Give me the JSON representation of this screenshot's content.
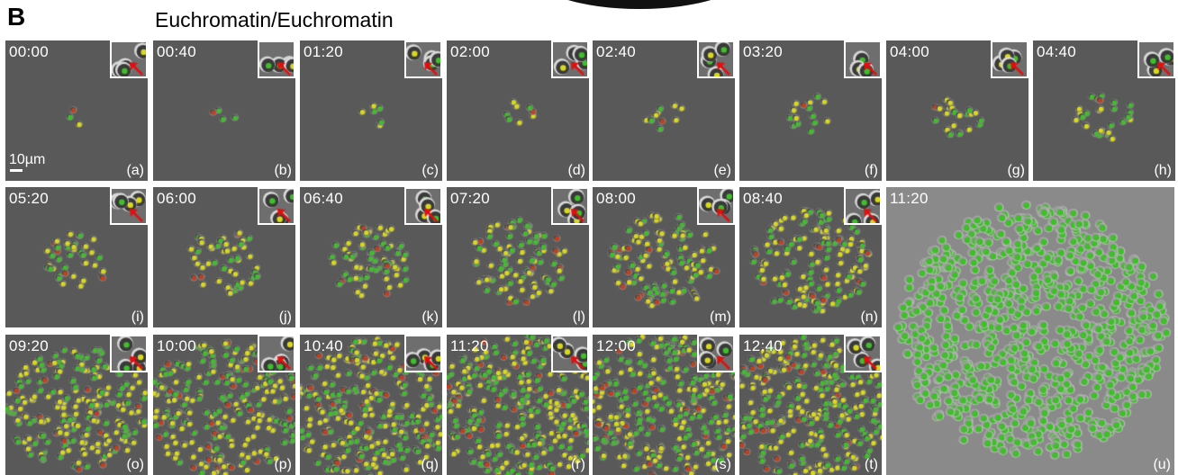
{
  "figure": {
    "panel_letter": "B",
    "title": "Euchromatin/Euchromatin",
    "scale_bar_label": "10µm"
  },
  "panels": [
    {
      "time": "00:00",
      "label": "(a)",
      "cells": 3
    },
    {
      "time": "00:40",
      "label": "(b)",
      "cells": 4
    },
    {
      "time": "01:20",
      "label": "(c)",
      "cells": 6
    },
    {
      "time": "02:00",
      "label": "(d)",
      "cells": 8
    },
    {
      "time": "02:40",
      "label": "(e)",
      "cells": 11
    },
    {
      "time": "03:20",
      "label": "(f)",
      "cells": 16
    },
    {
      "time": "04:00",
      "label": "(g)",
      "cells": 22
    },
    {
      "time": "04:40",
      "label": "(h)",
      "cells": 30
    },
    {
      "time": "05:20",
      "label": "(i)",
      "cells": 40
    },
    {
      "time": "06:00",
      "label": "(j)",
      "cells": 55
    },
    {
      "time": "06:40",
      "label": "(k)",
      "cells": 70
    },
    {
      "time": "07:20",
      "label": "(l)",
      "cells": 95
    },
    {
      "time": "08:00",
      "label": "(m)",
      "cells": 120
    },
    {
      "time": "08:40",
      "label": "(n)",
      "cells": 150
    },
    {
      "time": "09:20",
      "label": "(o)",
      "cells": 220
    },
    {
      "time": "10:00",
      "label": "(p)",
      "cells": 260
    },
    {
      "time": "10:40",
      "label": "(q)",
      "cells": 300
    },
    {
      "time": "11:20",
      "label": "(r)",
      "cells": 320
    },
    {
      "time": "12:00",
      "label": "(s)",
      "cells": 320
    },
    {
      "time": "12:40",
      "label": "(t)",
      "cells": 300
    },
    {
      "time": "11:20",
      "label": "(u)",
      "cells": 900
    }
  ],
  "colors": {
    "background_gray": "#595959",
    "cell_green": "#3fbf2a",
    "cell_yellow": "#d8d820",
    "cell_red": "#c04020",
    "arrow_red": "#e01010",
    "text": "#ffffff"
  }
}
